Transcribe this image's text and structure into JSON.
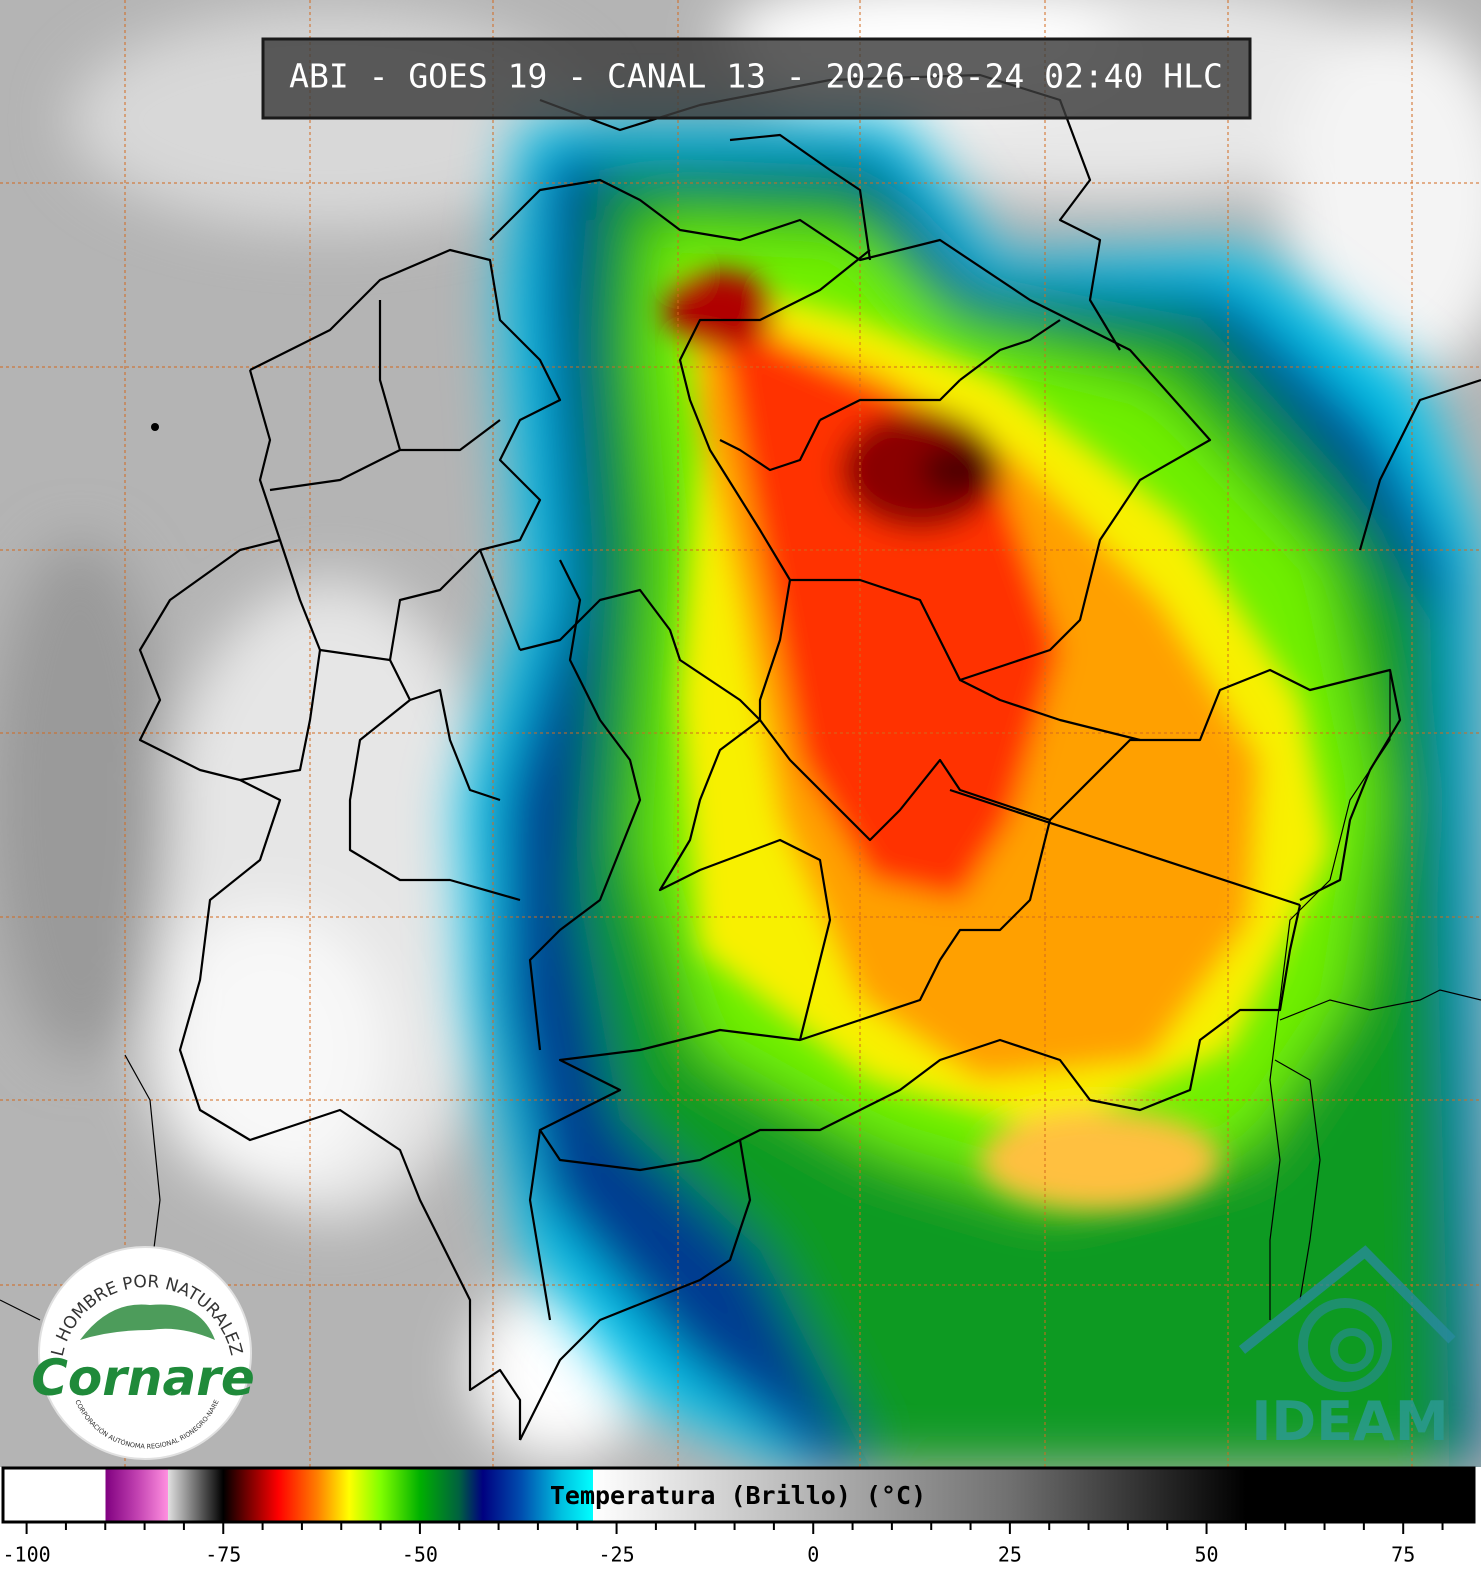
{
  "header": {
    "title": "ABI - GOES 19 - CANAL 13 - 2026-08-24 02:40 HLC"
  },
  "colorbar": {
    "label": "Temperatura (Brillo) (°C)",
    "lim": [
      -103,
      84
    ],
    "ticks": [
      -100,
      -75,
      -50,
      -25,
      0,
      25,
      50,
      75
    ],
    "minor_ticks": [
      -95,
      -90,
      -85,
      -80,
      -70,
      -65,
      -60,
      -55,
      -45,
      -40,
      -35,
      -30,
      -20,
      -15,
      -10,
      -5,
      5,
      10,
      15,
      20,
      30,
      35,
      40,
      45,
      55,
      60,
      65,
      70,
      80
    ],
    "stops": [
      {
        "value": -103,
        "color": "#ffffff"
      },
      {
        "value": -90,
        "color": "#ffffff"
      },
      {
        "value": -90,
        "color": "#800080"
      },
      {
        "value": -86,
        "color": "#c040b0"
      },
      {
        "value": -82,
        "color": "#ff90e0"
      },
      {
        "value": -82,
        "color": "#e0e0e0"
      },
      {
        "value": -75,
        "color": "#000000"
      },
      {
        "value": -72,
        "color": "#700000"
      },
      {
        "value": -68,
        "color": "#ff0000"
      },
      {
        "value": -63,
        "color": "#ff8000"
      },
      {
        "value": -59,
        "color": "#ffff00"
      },
      {
        "value": -55,
        "color": "#80ff00"
      },
      {
        "value": -50,
        "color": "#00b000"
      },
      {
        "value": -45,
        "color": "#006040"
      },
      {
        "value": -42,
        "color": "#000080"
      },
      {
        "value": -37,
        "color": "#0050b0"
      },
      {
        "value": -32,
        "color": "#00c0e0"
      },
      {
        "value": -28,
        "color": "#00ffff"
      },
      {
        "value": -28,
        "color": "#ffffff"
      },
      {
        "value": 25,
        "color": "#707070"
      },
      {
        "value": 55,
        "color": "#000000"
      },
      {
        "value": 84,
        "color": "#000000"
      }
    ]
  },
  "logos": {
    "cornare": {
      "motto": "EL HOMBRE POR NATURALEZA",
      "name": "Cornare",
      "subtitle": "CORPORACIÓN AUTÓNOMA REGIONAL RIONEGRO-NARE"
    },
    "ideam": {
      "name": "IDEAM"
    }
  }
}
